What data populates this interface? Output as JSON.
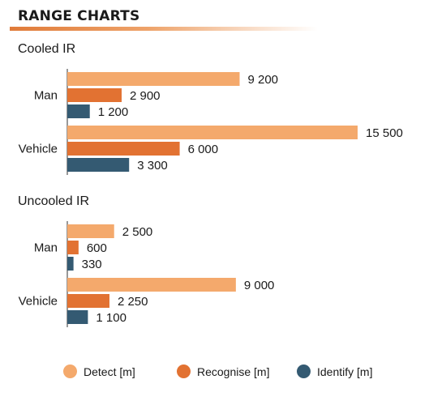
{
  "header": {
    "title": "RANGE CHARTS"
  },
  "colors": {
    "detect": "#f4a96c",
    "recognise": "#e27232",
    "identify": "#345a72",
    "accent": "#e07b39"
  },
  "chart_data": {
    "type": "bar",
    "orientation": "horizontal",
    "series": [
      {
        "name": "Detect [m]",
        "key": "detect"
      },
      {
        "name": "Recognise [m]",
        "key": "recognise"
      },
      {
        "name": "Identify [m]",
        "key": "identify"
      }
    ],
    "groups": [
      {
        "title": "Cooled IR",
        "categories": [
          {
            "label": "Man",
            "values": [
              9200,
              2900,
              1200
            ],
            "labels": [
              "9 200",
              "2 900",
              "1 200"
            ]
          },
          {
            "label": "Vehicle",
            "values": [
              15500,
              6000,
              3300
            ],
            "labels": [
              "15 500",
              "6 000",
              "3 300"
            ]
          }
        ]
      },
      {
        "title": "Uncooled IR",
        "categories": [
          {
            "label": "Man",
            "values": [
              2500,
              600,
              330
            ],
            "labels": [
              "2 500",
              "600",
              "330"
            ]
          },
          {
            "label": "Vehicle",
            "values": [
              9000,
              2250,
              1100
            ],
            "labels": [
              "9 000",
              "2 250",
              "1 100"
            ]
          }
        ]
      }
    ],
    "legend_position": "bottom"
  }
}
